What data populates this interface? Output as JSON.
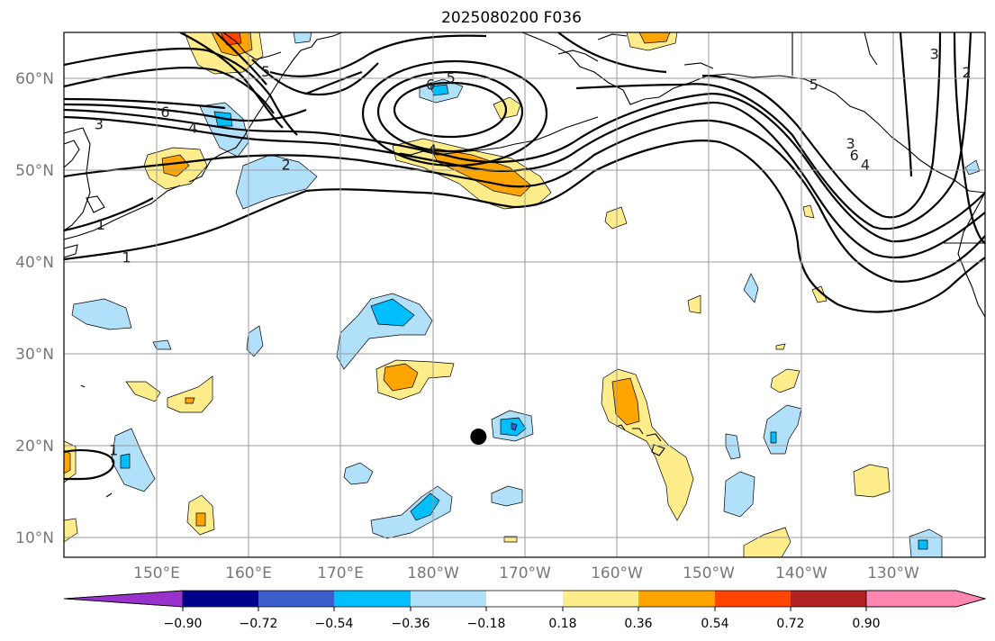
{
  "title": "2025080200 F036",
  "lat_ticks": [
    "60°N",
    "50°N",
    "40°N",
    "30°N",
    "20°N",
    "10°N"
  ],
  "lon_ticks": [
    "150°E",
    "160°E",
    "170°E",
    "180°W",
    "170°W",
    "160°W",
    "150°W",
    "140°W",
    "130°W"
  ],
  "colorbar": {
    "colors": [
      "#9932cc",
      "#00008b",
      "#3a5fcd",
      "#00bfff",
      "#b0e0fa",
      "#ffffff",
      "#ffec8b",
      "#ffa500",
      "#ff4500",
      "#b22222",
      "#ff86b0"
    ],
    "ticks": [
      "−0.90",
      "−0.72",
      "−0.54",
      "−0.36",
      "−0.18",
      "0.18",
      "0.36",
      "0.54",
      "0.72",
      "0.90"
    ]
  },
  "contour_labels": [
    {
      "text": "6",
      "lat": 56.3,
      "lon": 151.0
    },
    {
      "text": "4",
      "lat": 54.6,
      "lon": 154.0
    },
    {
      "text": "3",
      "lat": 55.0,
      "lon": 143.8
    },
    {
      "text": "2",
      "lat": 50.6,
      "lon": 164.1
    },
    {
      "text": "1",
      "lat": 40.5,
      "lon": 146.8
    },
    {
      "text": "1",
      "lat": 44.1,
      "lon": 144.0
    },
    {
      "text": "5",
      "lat": 60.7,
      "lon": 161.9
    },
    {
      "text": "6",
      "lat": 59.3,
      "lon": 179.8
    },
    {
      "text": "5",
      "lat": 60.0,
      "lon": 182.0
    },
    {
      "text": "4",
      "lat": 52.2,
      "lon": 180.0
    },
    {
      "text": "5",
      "lat": 59.3,
      "lon": 221.4
    },
    {
      "text": "3",
      "lat": 52.9,
      "lon": 225.4
    },
    {
      "text": "6",
      "lat": 51.6,
      "lon": 225.8
    },
    {
      "text": "4",
      "lat": 50.6,
      "lon": 227.0
    },
    {
      "text": "3",
      "lat": 62.6,
      "lon": 234.5
    },
    {
      "text": "2",
      "lat": 60.6,
      "lon": 238.0
    },
    {
      "text": "1",
      "lat": 19.6,
      "lon": 145.4
    }
  ],
  "marker": {
    "name": "black-dot",
    "lat": 21.1,
    "lon": 185.0
  },
  "colors": {
    "coast": "#000000",
    "grid": "#9a9a9a",
    "tick_text": "#777777"
  }
}
